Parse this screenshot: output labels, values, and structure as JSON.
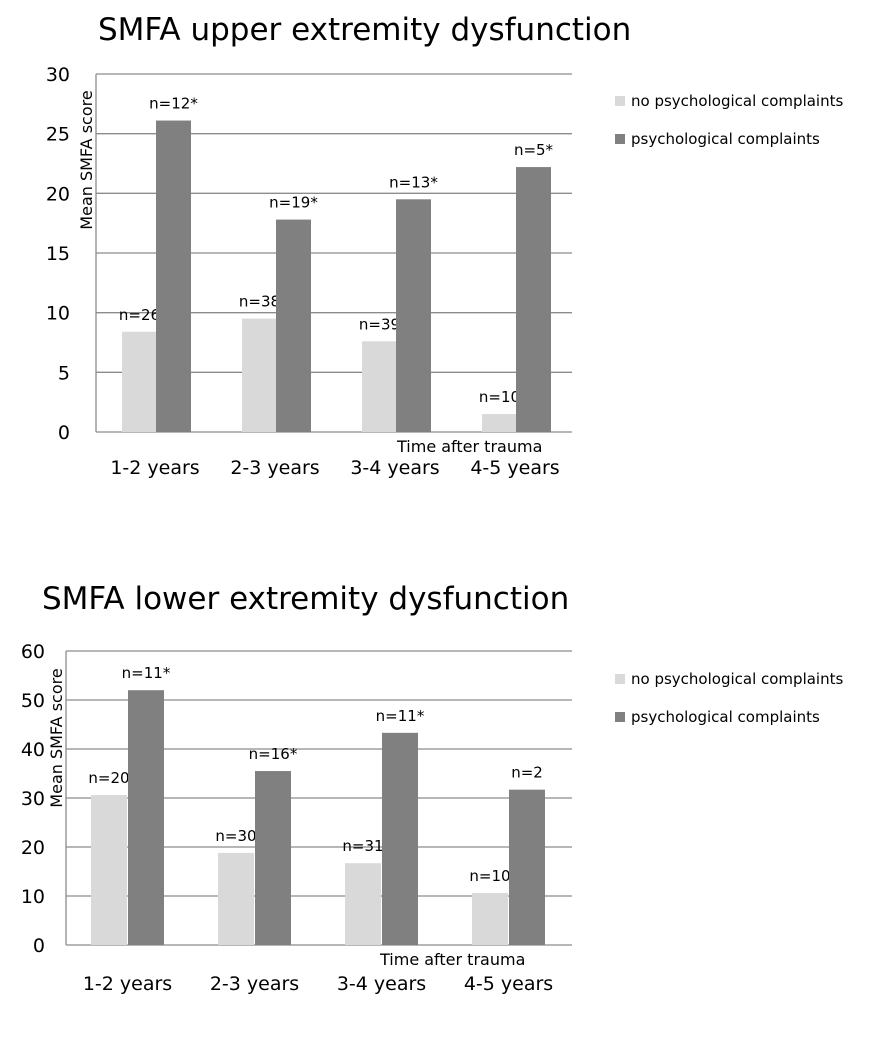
{
  "colors": {
    "no_complaints": "#d9d9d9",
    "complaints": "#808080",
    "grid": "#8c8c8c"
  },
  "chart_data": [
    {
      "type": "bar",
      "title": "SMFA upper extremity dysfunction",
      "xlabel": "Time after trauma",
      "ylabel": "Mean SMFA score",
      "ylim": [
        0,
        30
      ],
      "yticks": [
        "0",
        "5",
        "10",
        "15",
        "20",
        "25",
        "30"
      ],
      "categories": [
        "1-2 years",
        "2-3 years",
        "3-4 years",
        "4-5 years"
      ],
      "grid": true,
      "legend_position": "right",
      "series": [
        {
          "name": "no psychological complaints",
          "values": [
            8.4,
            9.5,
            7.6,
            1.5
          ],
          "labels": [
            "n=26",
            "n=38",
            "n=39",
            "n=10"
          ]
        },
        {
          "name": "psychological complaints",
          "values": [
            26.1,
            17.8,
            19.5,
            22.2
          ],
          "labels": [
            "n=12*",
            "n=19*",
            "n=13*",
            "n=5*"
          ]
        }
      ]
    },
    {
      "type": "bar",
      "title": "SMFA lower extremity dysfunction",
      "xlabel": "Time after trauma",
      "ylabel": "Mean SMFA score",
      "ylim": [
        0,
        60
      ],
      "yticks": [
        "0",
        "10",
        "20",
        "30",
        "40",
        "50",
        "60"
      ],
      "categories": [
        "1-2 years",
        "2-3 years",
        "3-4 years",
        "4-5 years"
      ],
      "grid": true,
      "legend_position": "right",
      "series": [
        {
          "name": "no psychological complaints",
          "values": [
            30.6,
            18.8,
            16.7,
            10.6
          ],
          "labels": [
            "n=20",
            "n=30",
            "n=31",
            "n=10"
          ]
        },
        {
          "name": "psychological complaints",
          "values": [
            52.0,
            35.5,
            43.3,
            31.7
          ],
          "labels": [
            "n=11*",
            "n=16*",
            "n=11*",
            "n=2"
          ]
        }
      ]
    }
  ]
}
